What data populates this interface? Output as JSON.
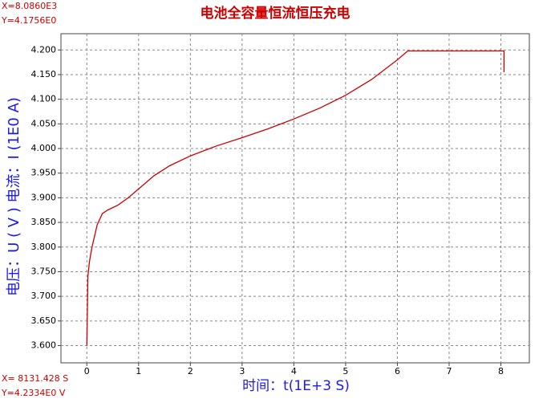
{
  "chart_data": {
    "type": "line",
    "title": "电池全容量恒流恒压充电",
    "xlabel": "时间：t(1E+3 S)",
    "ylabel": "电压：U ( V )  电流：I (1E0 A)",
    "annotations": [
      "X=8.0860E3",
      "Y=4.1756E0",
      "X= 8131.428 S",
      "Y=4.2334E0 V"
    ],
    "x": [
      0,
      0.02,
      0.05,
      0.1,
      0.2,
      0.3,
      0.4,
      0.6,
      0.8,
      1.0,
      1.3,
      1.6,
      2.0,
      2.5,
      3.0,
      3.5,
      4.0,
      4.5,
      5.0,
      5.5,
      6.0,
      6.2,
      6.3,
      8.0,
      8.06,
      8.06,
      8.06
    ],
    "series": [
      {
        "name": "U",
        "color": "#cc0000",
        "values": [
          3.6,
          3.74,
          3.77,
          3.8,
          3.845,
          3.868,
          3.875,
          3.885,
          3.9,
          3.918,
          3.945,
          3.965,
          3.985,
          4.005,
          4.022,
          4.04,
          4.06,
          4.082,
          4.108,
          4.14,
          4.18,
          4.198,
          4.198,
          4.198,
          4.198,
          4.185,
          4.155
        ]
      }
    ],
    "xlim": [
      -0.5,
      8.55
    ],
    "ylim": [
      3.565,
      4.233
    ],
    "xticks": [
      0,
      1,
      2,
      3,
      4,
      5,
      6,
      7,
      8
    ],
    "yticks": [
      {
        "value": 3.6,
        "label": "3.600"
      },
      {
        "value": 3.65,
        "label": "3.650"
      },
      {
        "value": 3.7,
        "label": "3.700"
      },
      {
        "value": 3.75,
        "label": "3.750"
      },
      {
        "value": 3.8,
        "label": "3.800"
      },
      {
        "value": 3.85,
        "label": "3.850"
      },
      {
        "value": 3.9,
        "label": "3.900"
      },
      {
        "value": 3.95,
        "label": "3.950"
      },
      {
        "value": 4.0,
        "label": "4.000"
      },
      {
        "value": 4.05,
        "label": "4.050"
      },
      {
        "value": 4.1,
        "label": "4.100"
      },
      {
        "value": 4.15,
        "label": "4.150"
      },
      {
        "value": 4.2,
        "label": "4.200"
      }
    ],
    "grid": true
  }
}
